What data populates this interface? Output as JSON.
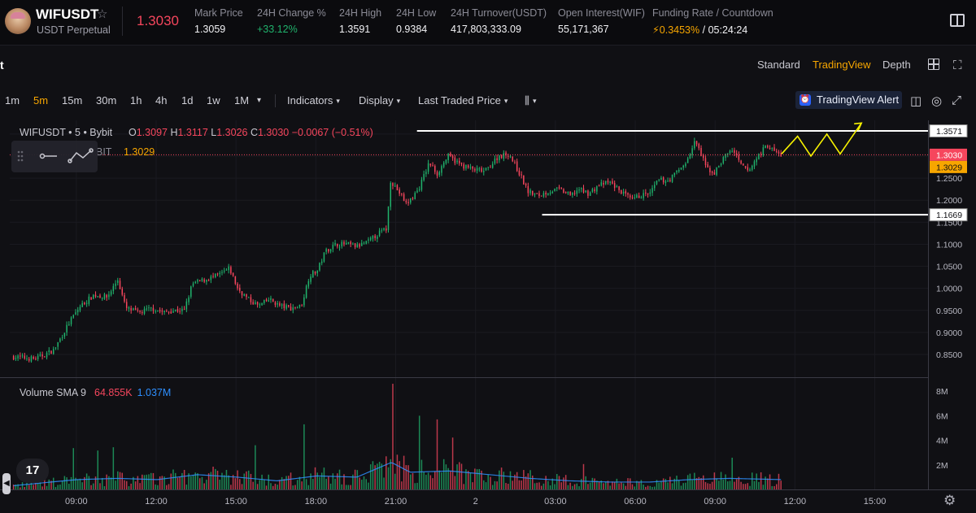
{
  "header": {
    "symbol": "WIFUSDT",
    "star": "☆",
    "subtitle": "USDT Perpetual",
    "last_price": "1.3030",
    "stats": [
      {
        "label": "Mark Price",
        "value": "1.3059"
      },
      {
        "label": "24H Change %",
        "value": "+33.12%"
      },
      {
        "label": "24H High",
        "value": "1.3591"
      },
      {
        "label": "24H Low",
        "value": "0.9384"
      },
      {
        "label": "24H Turnover(USDT)",
        "value": "417,803,333.09"
      },
      {
        "label": "Open Interest(WIF)",
        "value": "55,171,367"
      },
      {
        "label": "Funding Rate / Countdown",
        "value_rate": "0.3453%",
        "value_sep": " / ",
        "value_time": "05:24:24",
        "bolt": "⚡"
      }
    ]
  },
  "view_modes": {
    "left_label": "t",
    "standard": "Standard",
    "tradingview": "TradingView",
    "depth": "Depth"
  },
  "toolbar": {
    "timeframes": [
      "1m",
      "5m",
      "15m",
      "30m",
      "1h",
      "4h",
      "1d",
      "1w",
      "1M"
    ],
    "active_timeframe": "5m",
    "more_caret": "▾",
    "indicators": "Indicators",
    "display": "Display",
    "price_type": "Last Traded Price",
    "chart_type_glyph": "⫼",
    "alert": "TradingView Alert",
    "camera_glyph": "◫",
    "settings_glyph": "◎",
    "fullscreen_glyph": "⤢",
    "expand_glyph": "⛶"
  },
  "legend": {
    "title": "WIFUSDT • 5 • Bybit",
    "o_key": "O",
    "o": "1.3097",
    "h_key": "H",
    "h": "1.3117",
    "l_key": "L",
    "l": "1.3026",
    "c_key": "C",
    "c": "1.3030",
    "change": "−0.0067 (−0.51%)",
    "line2_label": "BIT",
    "line2_value": "1.3029"
  },
  "volume_legend": {
    "label": "Volume SMA 9",
    "v1": "64.855K",
    "v2": "1.037M"
  },
  "tv_logo": "17",
  "settings_glyph": "⚙",
  "scroll_glyph": "◀",
  "colors": {
    "up": "#20b26c",
    "down": "#f6465d",
    "accent": "#f7a600",
    "sma": "#2e8fff"
  },
  "chart_data": {
    "type": "candlestick",
    "symbol": "WIFUSDT",
    "interval": "5",
    "exchange": "Bybit",
    "price_axis": {
      "range": [
        0.82,
        1.39
      ],
      "ticks": [
        "1.3500",
        "1.3000",
        "1.2500",
        "1.2000",
        "1.1500",
        "1.1000",
        "1.0500",
        "1.0000",
        "0.9500",
        "0.9000",
        "0.8500"
      ]
    },
    "volume_axis": {
      "range": [
        0,
        9
      ],
      "unit": "M",
      "ticks": [
        "8M",
        "6M",
        "4M",
        "2M"
      ]
    },
    "time_axis": {
      "ticks": [
        "09:00",
        "12:00",
        "15:00",
        "18:00",
        "21:00",
        "2",
        "03:00",
        "06:00",
        "09:00",
        "12:00",
        "15:00"
      ],
      "tick_hours": [
        9,
        12,
        15,
        18,
        21,
        24,
        27,
        30,
        33,
        36,
        39
      ],
      "range_hours": [
        6.5,
        41
      ]
    },
    "price_path": [
      [
        6.6,
        0.845
      ],
      [
        7.5,
        0.84
      ],
      [
        8.2,
        0.86
      ],
      [
        8.8,
        0.925
      ],
      [
        9.2,
        0.96
      ],
      [
        9.7,
        0.985
      ],
      [
        10.2,
        0.98
      ],
      [
        10.6,
        1.02
      ],
      [
        10.9,
        0.955
      ],
      [
        11.4,
        0.945
      ],
      [
        11.9,
        0.955
      ],
      [
        12.3,
        0.945
      ],
      [
        12.7,
        0.95
      ],
      [
        13.1,
        0.95
      ],
      [
        13.4,
        1.01
      ],
      [
        13.9,
        1.02
      ],
      [
        14.4,
        1.03
      ],
      [
        14.8,
        1.045
      ],
      [
        15.1,
        1.0
      ],
      [
        15.5,
        0.975
      ],
      [
        15.9,
        0.96
      ],
      [
        16.3,
        0.975
      ],
      [
        16.7,
        0.96
      ],
      [
        17.1,
        0.955
      ],
      [
        17.5,
        0.96
      ],
      [
        17.8,
        1.03
      ],
      [
        18.1,
        1.04
      ],
      [
        18.4,
        1.085
      ],
      [
        18.8,
        1.1
      ],
      [
        19.2,
        1.1
      ],
      [
        19.6,
        1.095
      ],
      [
        20.0,
        1.105
      ],
      [
        20.4,
        1.125
      ],
      [
        20.7,
        1.135
      ],
      [
        20.85,
        1.245
      ],
      [
        21.2,
        1.215
      ],
      [
        21.45,
        1.19
      ],
      [
        21.9,
        1.225
      ],
      [
        22.3,
        1.285
      ],
      [
        22.6,
        1.26
      ],
      [
        23.0,
        1.3
      ],
      [
        23.5,
        1.28
      ],
      [
        23.9,
        1.27
      ],
      [
        24.4,
        1.265
      ],
      [
        24.9,
        1.3
      ],
      [
        25.3,
        1.305
      ],
      [
        25.7,
        1.26
      ],
      [
        26.0,
        1.22
      ],
      [
        26.4,
        1.21
      ],
      [
        26.8,
        1.22
      ],
      [
        27.2,
        1.225
      ],
      [
        27.6,
        1.21
      ],
      [
        27.9,
        1.225
      ],
      [
        28.3,
        1.215
      ],
      [
        28.7,
        1.235
      ],
      [
        29.1,
        1.24
      ],
      [
        29.5,
        1.22
      ],
      [
        29.9,
        1.2
      ],
      [
        30.2,
        1.21
      ],
      [
        30.6,
        1.215
      ],
      [
        30.9,
        1.245
      ],
      [
        31.3,
        1.245
      ],
      [
        31.7,
        1.27
      ],
      [
        32.0,
        1.29
      ],
      [
        32.3,
        1.335
      ],
      [
        32.7,
        1.275
      ],
      [
        33.0,
        1.26
      ],
      [
        33.4,
        1.3
      ],
      [
        33.7,
        1.315
      ],
      [
        34.0,
        1.28
      ],
      [
        34.3,
        1.265
      ],
      [
        34.7,
        1.305
      ],
      [
        35.0,
        1.325
      ],
      [
        35.3,
        1.309
      ],
      [
        35.5,
        1.303
      ]
    ],
    "volume_path": [
      [
        6.6,
        0.3
      ],
      [
        8,
        0.6
      ],
      [
        9,
        0.8
      ],
      [
        10.5,
        0.9
      ],
      [
        12,
        0.8
      ],
      [
        13.5,
        1.2
      ],
      [
        15,
        1.0
      ],
      [
        16.5,
        0.7
      ],
      [
        18,
        1.1
      ],
      [
        19.5,
        1.0
      ],
      [
        20.8,
        2.2
      ],
      [
        21.5,
        1.4
      ],
      [
        23,
        1.5
      ],
      [
        24.5,
        1.2
      ],
      [
        26,
        0.9
      ],
      [
        27.5,
        0.7
      ],
      [
        29,
        0.6
      ],
      [
        30.5,
        0.6
      ],
      [
        32,
        0.8
      ],
      [
        33.5,
        0.9
      ],
      [
        35.5,
        0.8
      ]
    ],
    "annotations": {
      "resistance": {
        "price": 1.3571,
        "label": "1.3571",
        "from_hour": 21.8
      },
      "support": {
        "price": 1.1669,
        "label": "1.1669",
        "from_hour": 26.5
      },
      "last_price_label": "1.3030",
      "bit_price_label": "1.3029",
      "projection_path": [
        [
          35.5,
          1.305
        ],
        [
          36.1,
          1.345
        ],
        [
          36.6,
          1.3
        ],
        [
          37.2,
          1.35
        ],
        [
          37.7,
          1.305
        ],
        [
          38.5,
          1.375
        ]
      ]
    }
  }
}
